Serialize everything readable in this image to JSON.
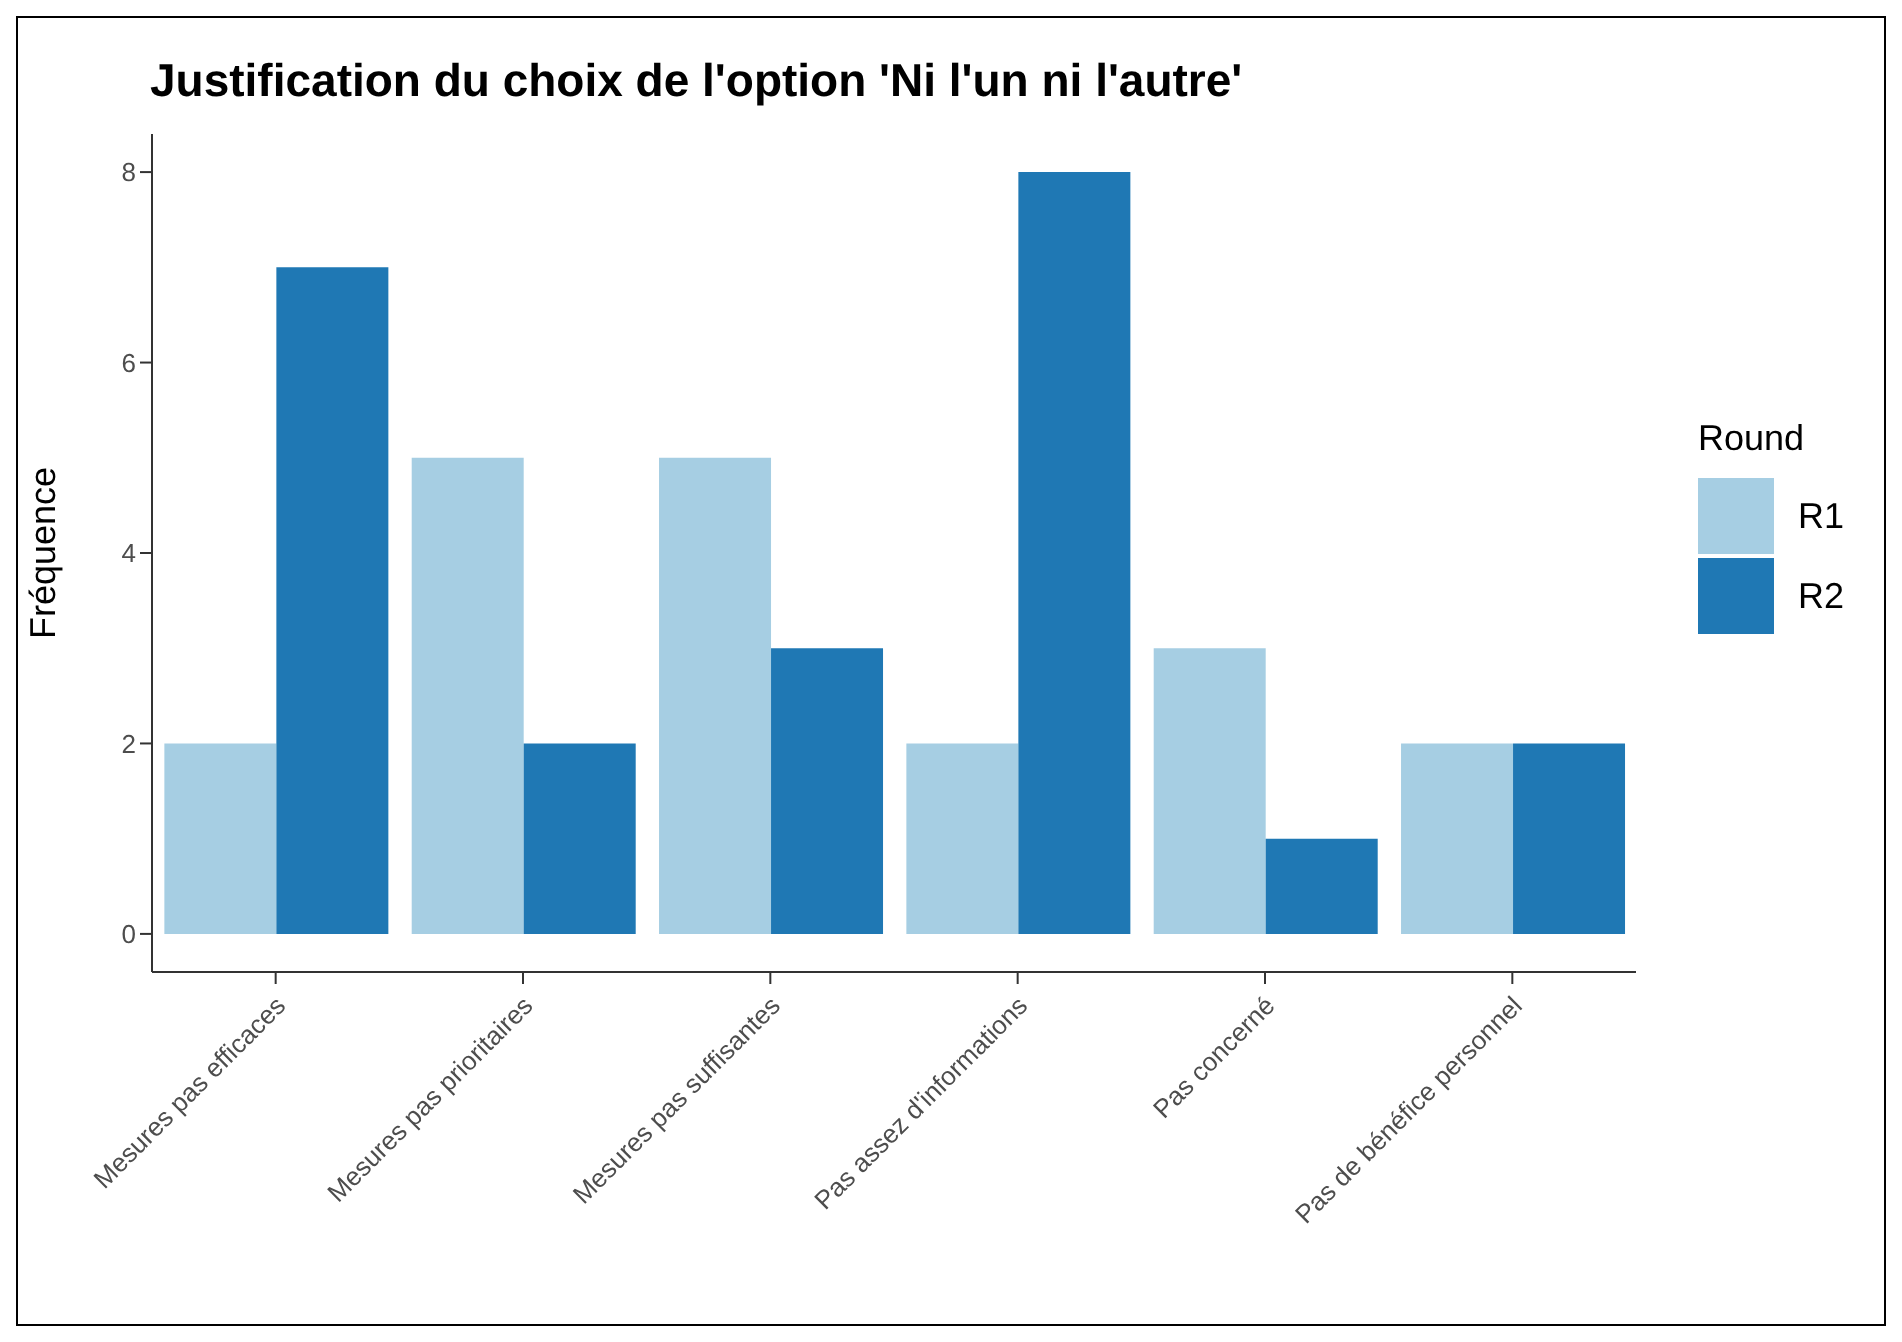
{
  "chart_data": {
    "type": "bar",
    "title": "Justification du choix de l'option 'Ni l'un ni l'autre'",
    "ylabel": "Fréquence",
    "legend_title": "Round",
    "categories": [
      "Mesures pas efficaces",
      "Mesures pas prioritaires",
      "Mesures pas suffisantes",
      "Pas assez d'informations",
      "Pas concerné",
      "Pas de bénéfice personnel"
    ],
    "series": [
      {
        "name": "R1",
        "color": "#a6cee3",
        "values": [
          2,
          5,
          5,
          2,
          3,
          2
        ]
      },
      {
        "name": "R2",
        "color": "#1f78b4",
        "values": [
          7,
          2,
          3,
          8,
          1,
          2
        ]
      }
    ],
    "ylim": [
      -0.4,
      8.4
    ],
    "yticks": [
      0,
      2,
      4,
      6,
      8
    ],
    "grid": false,
    "legend": "right"
  }
}
